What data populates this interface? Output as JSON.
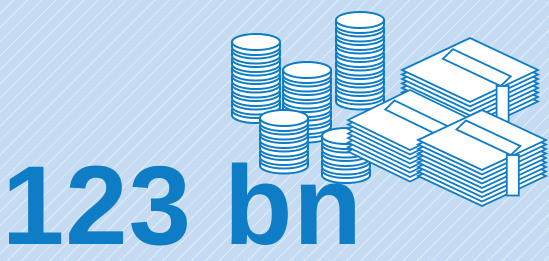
{
  "headline": "123 bn"
}
